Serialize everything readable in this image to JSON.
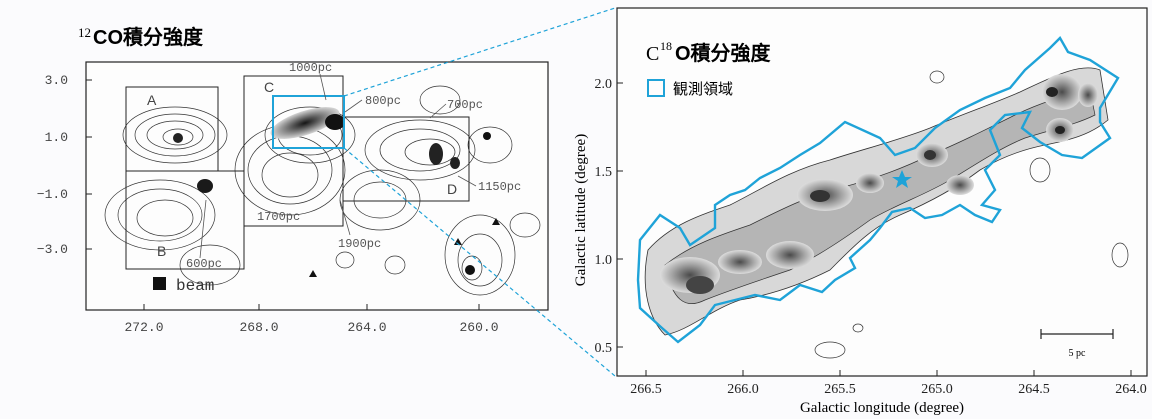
{
  "left_panel": {
    "title_sup": "12",
    "title_main": "CO積分強度",
    "y_ticks": [
      "3.0",
      "1.0",
      "−1.0",
      "−3.0"
    ],
    "x_ticks": [
      "272.0",
      "268.0",
      "264.0",
      "260.0"
    ],
    "region_labels": {
      "A": "A",
      "B": "B",
      "C": "C",
      "D": "D"
    },
    "distance_labels": {
      "d1000": "1000pc",
      "d800": "800pc",
      "d700": "700pc",
      "d1150": "1150pc",
      "d1700": "1700pc",
      "d1900": "1900pc",
      "d600": "600pc"
    },
    "beam_label": "beam"
  },
  "right_panel": {
    "title_pre": "C",
    "title_sup": "18",
    "title_main": "O積分強度",
    "legend_label": "観測領域",
    "y_ticks": [
      "2.0",
      "1.5",
      "1.0",
      "0.5"
    ],
    "x_ticks": [
      "266.5",
      "266.0",
      "265.5",
      "265.0",
      "264.5",
      "264.0"
    ],
    "xlabel": "Galactic  longitude  (degree)",
    "ylabel": "Galactic latitude (degree)",
    "scale_bar_label": "5 pc"
  },
  "colors": {
    "observed_region": "#1fa3d8",
    "contour": "#222222",
    "fill_dark": "#3a3a3a",
    "fill_mid": "#8a8a8a",
    "fill_light": "#cfcfcf"
  }
}
